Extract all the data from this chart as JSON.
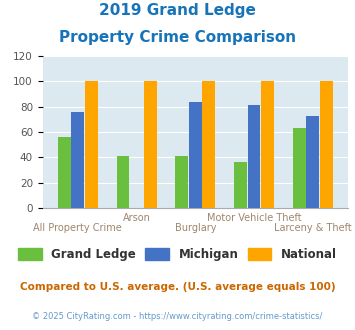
{
  "title_line1": "2019 Grand Ledge",
  "title_line2": "Property Crime Comparison",
  "categories": [
    "All Property Crime",
    "Arson",
    "Burglary",
    "Motor Vehicle Theft",
    "Larceny & Theft"
  ],
  "grand_ledge": [
    56,
    41,
    41,
    36,
    63
  ],
  "michigan": [
    76,
    0,
    84,
    81,
    73
  ],
  "national": [
    100,
    100,
    100,
    100,
    100
  ],
  "bar_colors": {
    "grand_ledge": "#6abf3e",
    "michigan": "#4472c4",
    "national": "#ffa500"
  },
  "ylim": [
    0,
    120
  ],
  "yticks": [
    0,
    20,
    40,
    60,
    80,
    100,
    120
  ],
  "background_color": "#dce9f0",
  "title_color": "#1874b8",
  "xlabel_color": "#a0856c",
  "legend_labels": [
    "Grand Ledge",
    "Michigan",
    "National"
  ],
  "footnote1": "Compared to U.S. average. (U.S. average equals 100)",
  "footnote2": "© 2025 CityRating.com - https://www.cityrating.com/crime-statistics/",
  "footnote1_color": "#cc6600",
  "footnote2_color": "#6699cc"
}
